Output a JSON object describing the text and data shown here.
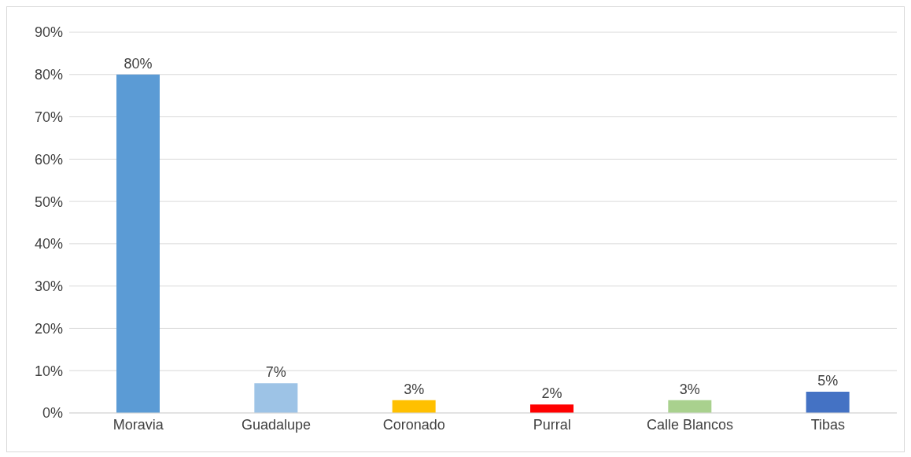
{
  "chart_data": {
    "type": "bar",
    "categories": [
      "Moravia",
      "Guadalupe",
      "Coronado",
      "Purral",
      "Calle Blancos",
      "Tibas"
    ],
    "values": [
      80,
      7,
      3,
      2,
      3,
      5
    ],
    "colors": [
      "#5b9bd5",
      "#9dc3e6",
      "#ffc000",
      "#ff0000",
      "#a9d18e",
      "#4472c4"
    ],
    "value_labels": [
      "80%",
      "7%",
      "3%",
      "2%",
      "3%",
      "5%"
    ],
    "ylim": [
      0,
      90
    ],
    "yticks": [
      {
        "value": 0,
        "label": "0%"
      },
      {
        "value": 10,
        "label": "10%"
      },
      {
        "value": 20,
        "label": "20%"
      },
      {
        "value": 30,
        "label": "30%"
      },
      {
        "value": 40,
        "label": "40%"
      },
      {
        "value": 50,
        "label": "50%"
      },
      {
        "value": 60,
        "label": "60%"
      },
      {
        "value": 70,
        "label": "70%"
      },
      {
        "value": 80,
        "label": "80%"
      },
      {
        "value": 90,
        "label": "90%"
      }
    ],
    "grid": "y"
  }
}
